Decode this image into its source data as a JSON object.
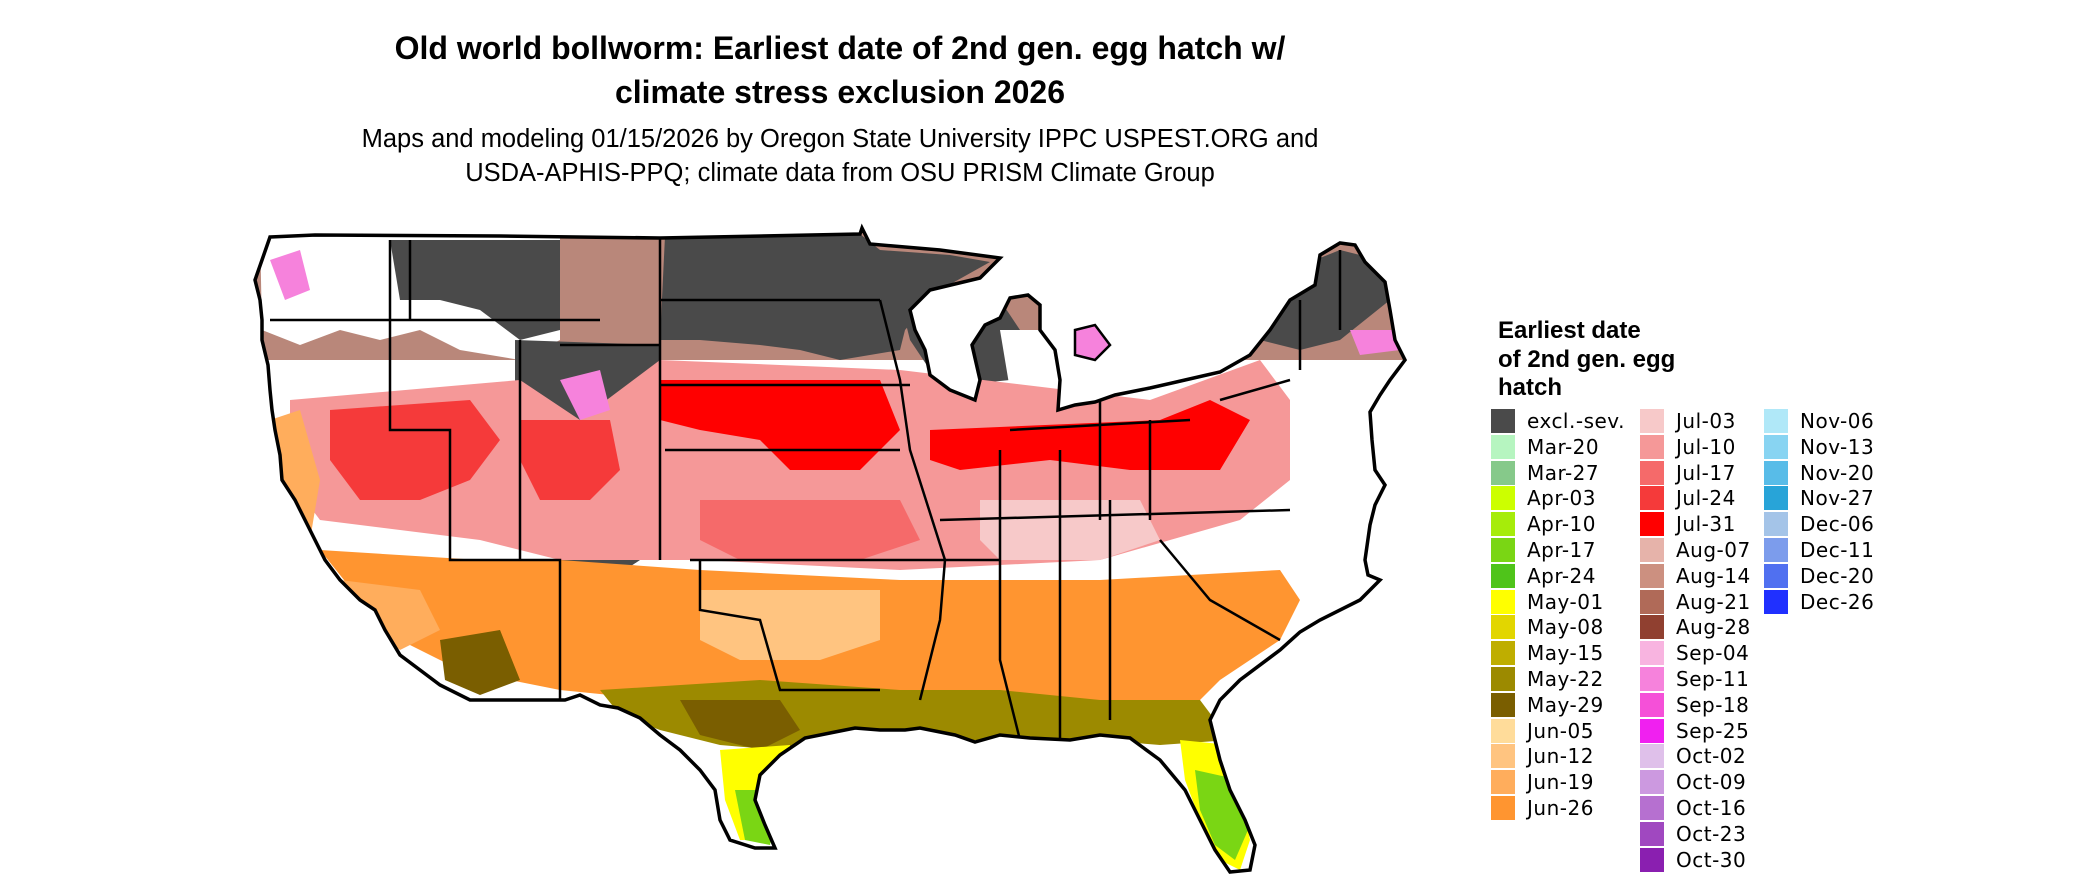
{
  "title_line1": "Old world bollworm: Earliest date of 2nd gen. egg hatch w/",
  "title_line2": "climate stress exclusion 2026",
  "subtitle_line1": "Maps and modeling 01/15/2026 by Oregon State University IPPC USPEST.ORG and",
  "subtitle_line2": "USDA-APHIS-PPQ; climate data from OSU PRISM Climate Group",
  "legend": {
    "title_lines": [
      "Earliest date",
      "of 2nd gen. egg",
      "hatch"
    ],
    "items": [
      {
        "label": "excl.-sev.",
        "color": "#4a4a4a"
      },
      {
        "label": "Mar-20",
        "color": "#b6f5c0"
      },
      {
        "label": "Mar-27",
        "color": "#86c98a"
      },
      {
        "label": "Apr-03",
        "color": "#ccff00"
      },
      {
        "label": "Apr-10",
        "color": "#a6ec0a"
      },
      {
        "label": "Apr-17",
        "color": "#7ad614"
      },
      {
        "label": "Apr-24",
        "color": "#4fc41a"
      },
      {
        "label": "May-01",
        "color": "#ffff00"
      },
      {
        "label": "May-08",
        "color": "#e2d600"
      },
      {
        "label": "May-15",
        "color": "#bfae00"
      },
      {
        "label": "May-22",
        "color": "#9c8a00"
      },
      {
        "label": "May-29",
        "color": "#7a5e00"
      },
      {
        "label": "Jun-05",
        "color": "#ffdc9a"
      },
      {
        "label": "Jun-12",
        "color": "#ffc480"
      },
      {
        "label": "Jun-19",
        "color": "#ffad5c"
      },
      {
        "label": "Jun-26",
        "color": "#ff9530"
      },
      {
        "label": "Jul-03",
        "color": "#f7c9c9"
      },
      {
        "label": "Jul-10",
        "color": "#f59898"
      },
      {
        "label": "Jul-17",
        "color": "#f56a6a"
      },
      {
        "label": "Jul-24",
        "color": "#f53a3a"
      },
      {
        "label": "Jul-31",
        "color": "#ff0000"
      },
      {
        "label": "Aug-07",
        "color": "#e6b3aa"
      },
      {
        "label": "Aug-14",
        "color": "#cc9080"
      },
      {
        "label": "Aug-21",
        "color": "#b06a58"
      },
      {
        "label": "Aug-28",
        "color": "#904030"
      },
      {
        "label": "Sep-04",
        "color": "#f8b4e0"
      },
      {
        "label": "Sep-11",
        "color": "#f682dc"
      },
      {
        "label": "Sep-18",
        "color": "#f550d8"
      },
      {
        "label": "Sep-25",
        "color": "#f020f0"
      },
      {
        "label": "Oct-02",
        "color": "#dfc0ea"
      },
      {
        "label": "Oct-09",
        "color": "#cc99e0"
      },
      {
        "label": "Oct-16",
        "color": "#b670d0"
      },
      {
        "label": "Oct-23",
        "color": "#a048c0"
      },
      {
        "label": "Oct-30",
        "color": "#8a1fb0"
      },
      {
        "label": "Nov-06",
        "color": "#b0e8f8"
      },
      {
        "label": "Nov-13",
        "color": "#88d4f2"
      },
      {
        "label": "Nov-20",
        "color": "#58bce8"
      },
      {
        "label": "Nov-27",
        "color": "#28a4d8"
      },
      {
        "label": "Dec-06",
        "color": "#a4c4e8"
      },
      {
        "label": "Dec-11",
        "color": "#7c9cec"
      },
      {
        "label": "Dec-20",
        "color": "#5070f0"
      },
      {
        "label": "Dec-26",
        "color": "#2030ff"
      }
    ]
  }
}
